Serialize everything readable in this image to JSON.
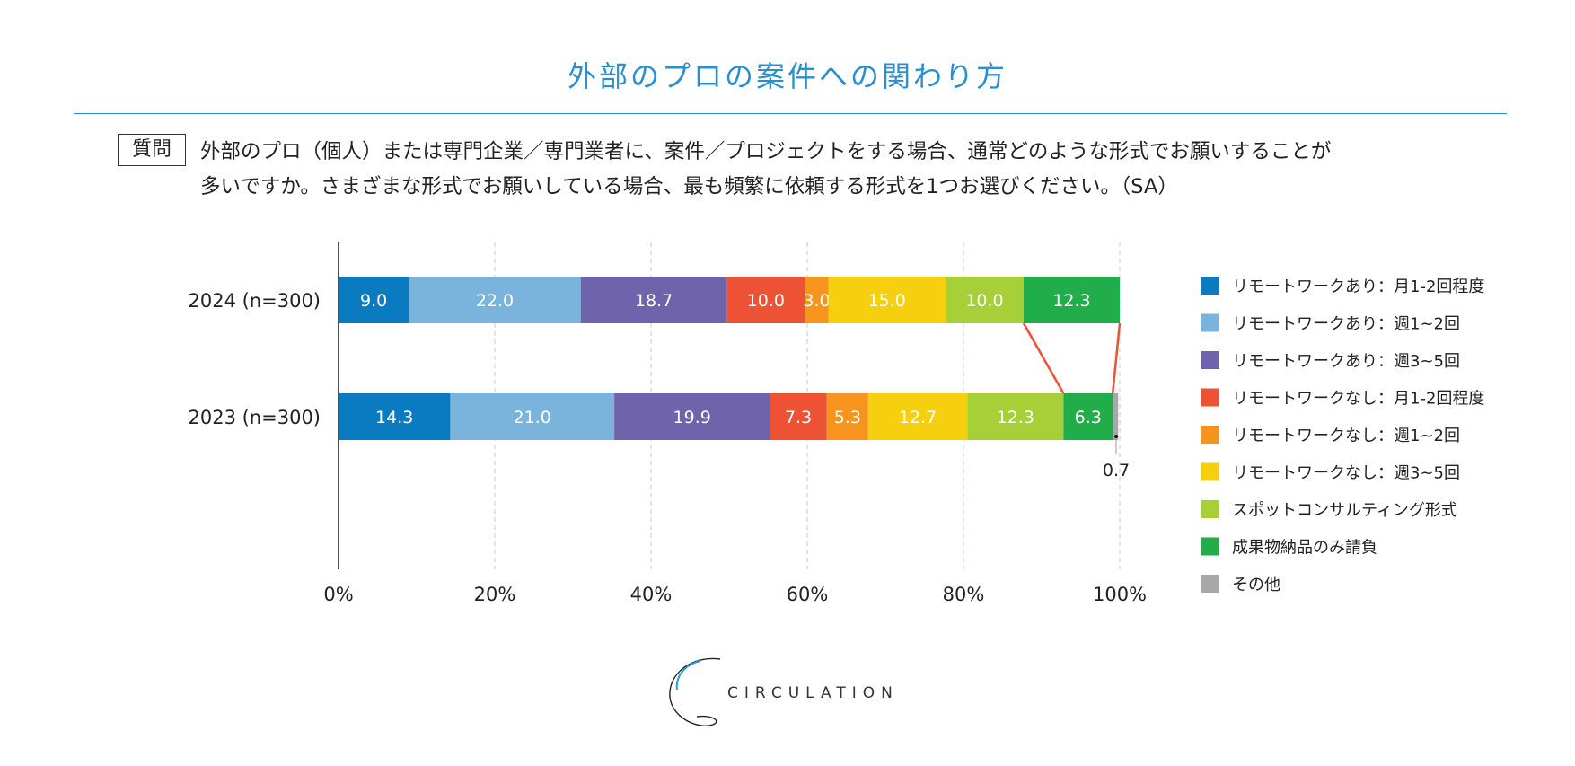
{
  "title": "外部のプロの案件への関わり方",
  "question": {
    "label": "質問",
    "line1": "外部のプロ（個人）または専門企業／専門業者に、案件／プロジェクトをする場合、通常どのような形式でお願いすることが",
    "line2": "多いですか。さまざまな形式でお願いしている場合、最も頻繁に依頼する形式を1つお選びください。（SA）"
  },
  "chart_data": {
    "type": "bar",
    "orientation": "horizontal-stacked-100",
    "categories": [
      "2024 (n=300)",
      "2023 (n=300)"
    ],
    "xticks": [
      "0%",
      "20%",
      "40%",
      "60%",
      "80%",
      "100%"
    ],
    "xlim": [
      0,
      100
    ],
    "grid": "vertical-dashed",
    "legend_position": "right",
    "series": [
      {
        "name": "リモートワークあり：月1-2回程度",
        "color": "#0b7bc1",
        "values": [
          9.0,
          14.3
        ],
        "labels": [
          "9.0",
          "14.3"
        ]
      },
      {
        "name": "リモートワークあり：週1~2回",
        "color": "#7ab4dc",
        "values": [
          22.0,
          21.0
        ],
        "labels": [
          "22.0",
          "21.0"
        ]
      },
      {
        "name": "リモートワークあり：週3~5回",
        "color": "#6f63ac",
        "values": [
          18.7,
          19.9
        ],
        "labels": [
          "18.7",
          "19.9"
        ]
      },
      {
        "name": "リモートワークなし：月1-2回程度",
        "color": "#ee5235",
        "values": [
          10.0,
          7.3
        ],
        "labels": [
          "10.0",
          "7.3"
        ]
      },
      {
        "name": "リモートワークなし：週1~2回",
        "color": "#f7941d",
        "values": [
          3.0,
          5.3
        ],
        "labels": [
          "3.0",
          "5.3"
        ]
      },
      {
        "name": "リモートワークなし：週3~5回",
        "color": "#f6d00f",
        "values": [
          15.0,
          12.7
        ],
        "labels": [
          "15.0",
          "12.7"
        ]
      },
      {
        "name": "スポットコンサルティング形式",
        "color": "#a6cf38",
        "values": [
          10.0,
          12.3
        ],
        "labels": [
          "10.0",
          "12.3"
        ]
      },
      {
        "name": "成果物納品のみ請負",
        "color": "#21ad4a",
        "values": [
          12.3,
          6.3
        ],
        "labels": [
          "12.3",
          "6.3"
        ]
      },
      {
        "name": "その他",
        "color": "#a8a8a8",
        "values": [
          0.0,
          0.7
        ],
        "labels": [
          "",
          ""
        ]
      }
    ],
    "annotation": "0.7",
    "connector_color": "#ee5235"
  },
  "logo": {
    "text": "CIRCULATION"
  }
}
